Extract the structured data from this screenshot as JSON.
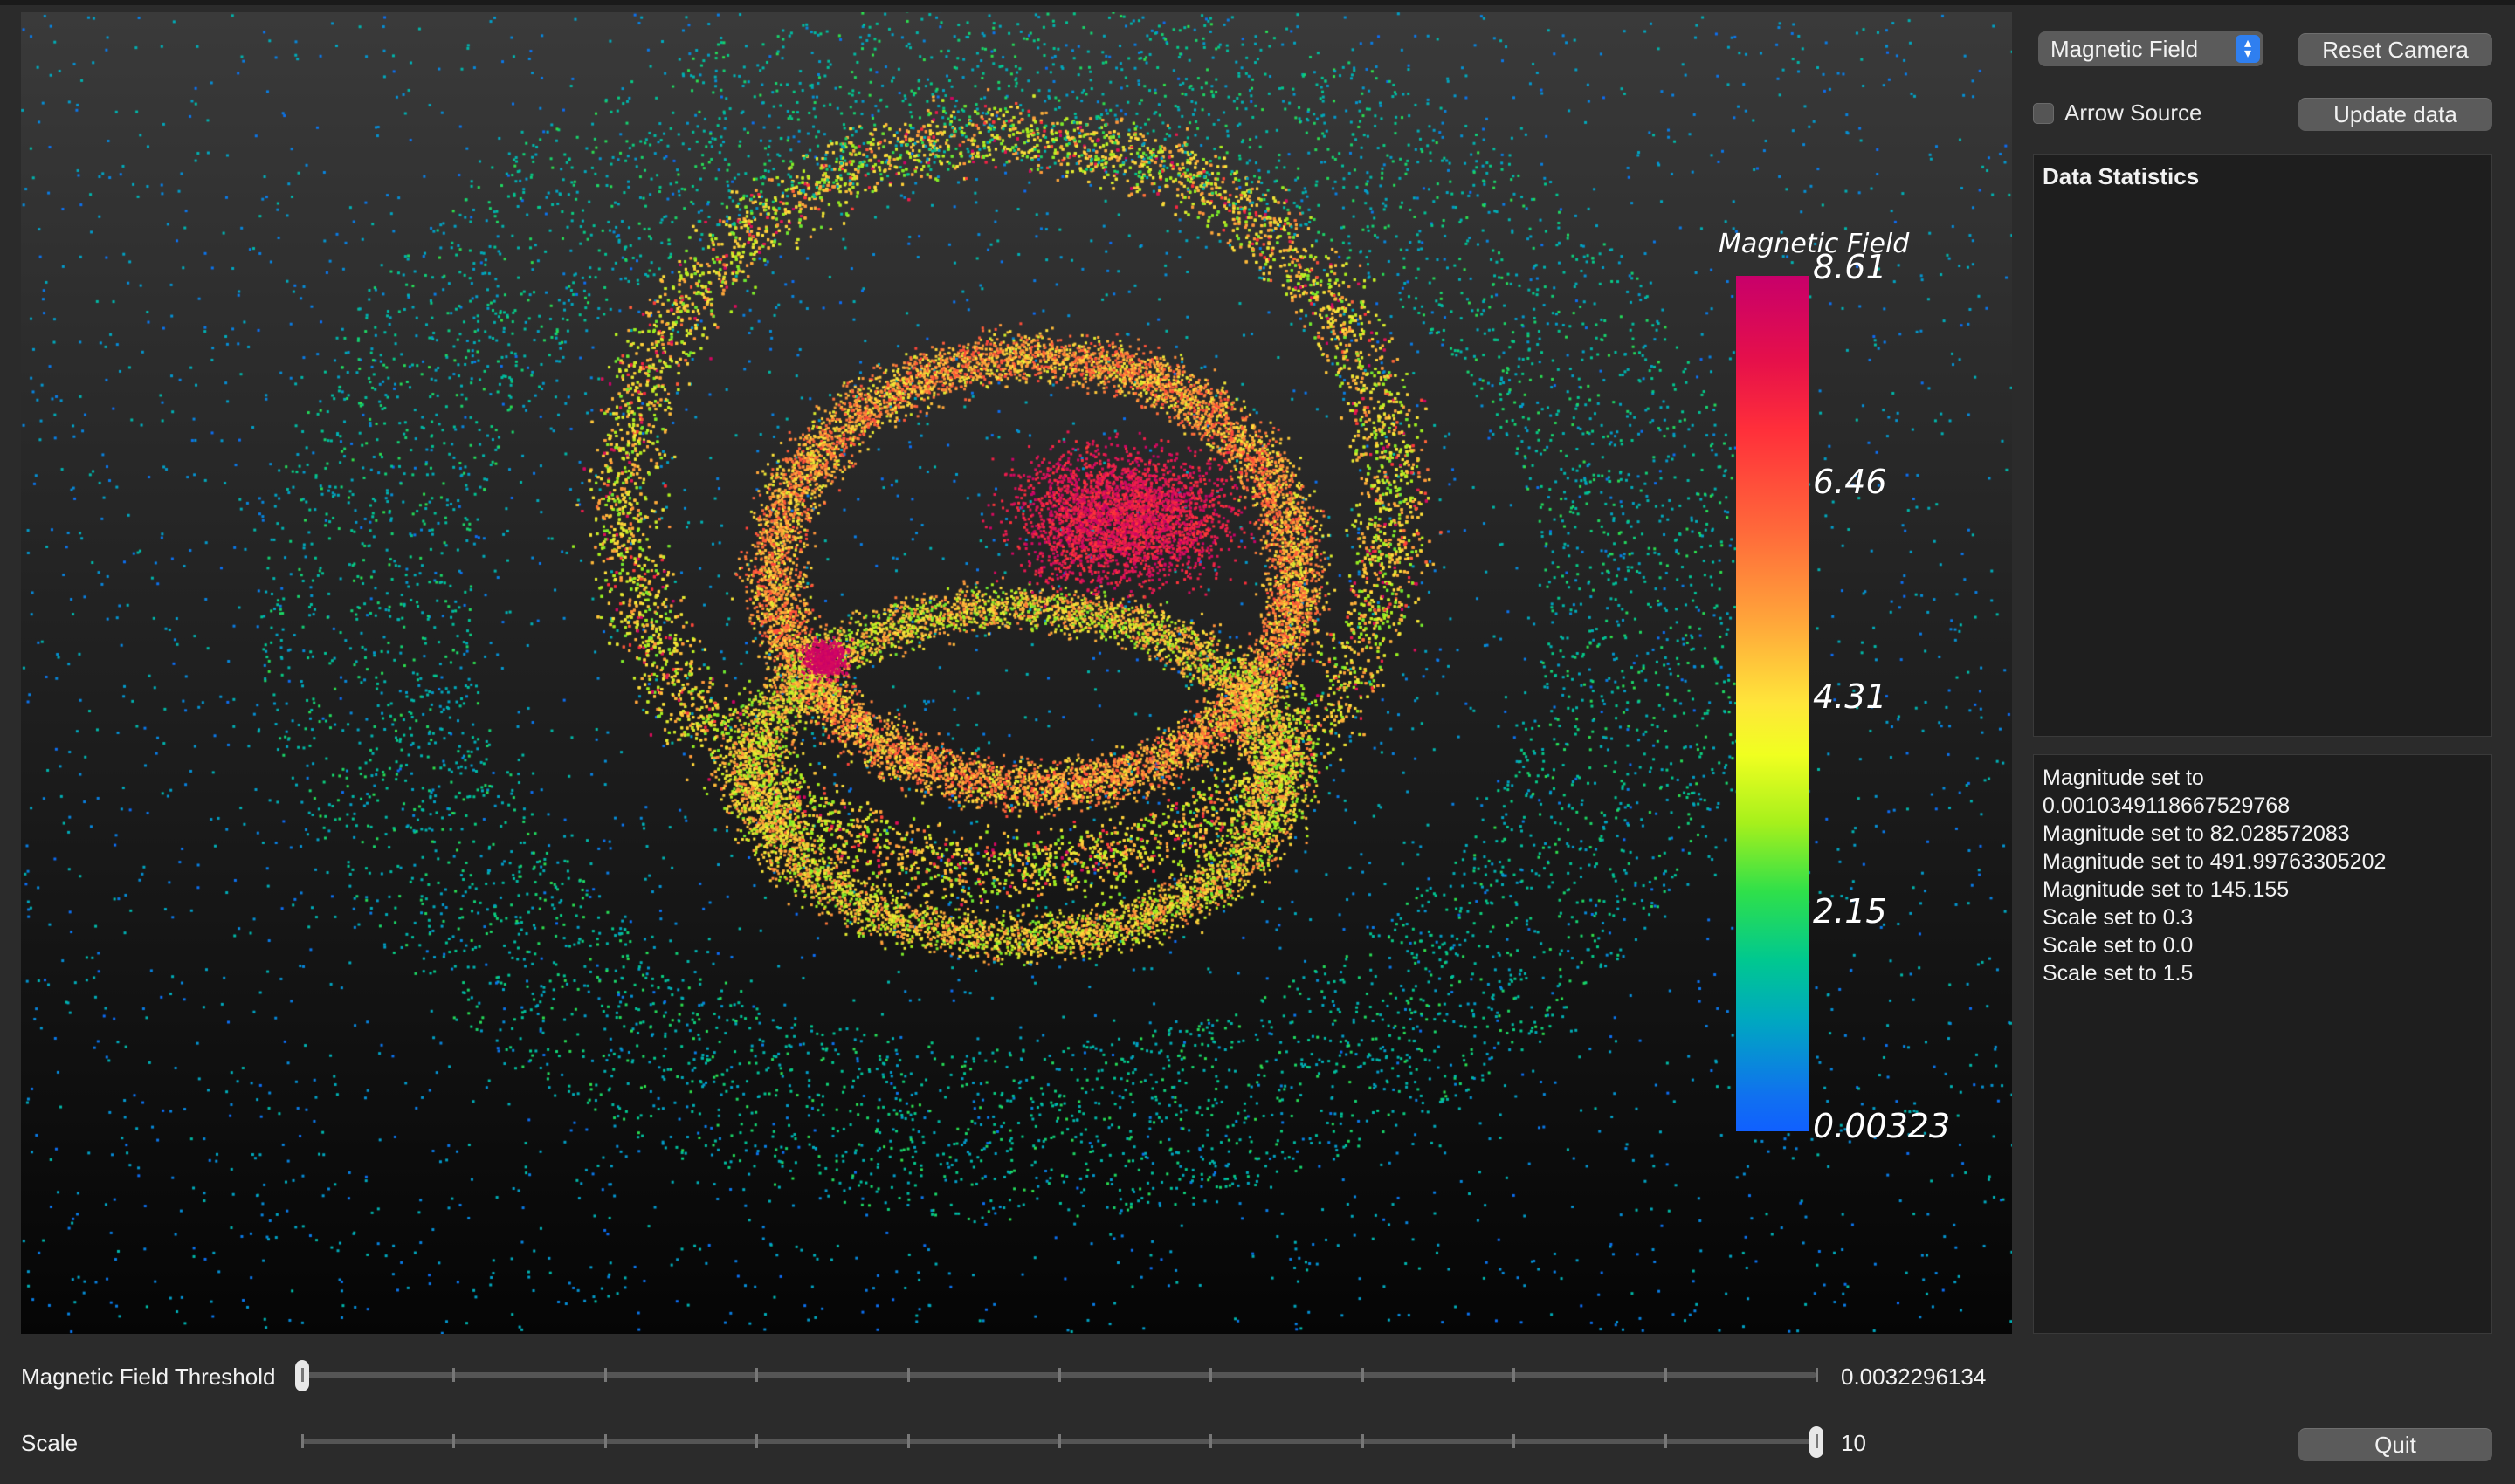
{
  "window": {
    "viewport": {
      "colorbar": {
        "title": "Magnetic Field",
        "ticks": [
          "8.61",
          "6.46",
          "4.31",
          "2.15",
          "0.00323"
        ]
      }
    }
  },
  "sidebar": {
    "field_select": {
      "selected": "Magnetic Field"
    },
    "reset_camera_label": "Reset Camera",
    "arrow_source": {
      "label": "Arrow Source",
      "checked": false
    },
    "update_data_label": "Update data",
    "stats_panel": {
      "title": "Data Statistics"
    },
    "log_panel": {
      "lines": [
        "Magnitude set to",
        "0.0010349118667529768",
        "Magnitude set to 82.028572083",
        "Magnitude set to 491.99763305202",
        "Magnitude set to 145.155",
        "Scale set to 0.3",
        "Scale set to 0.0",
        "Scale set to 1.5"
      ]
    },
    "quit_label": "Quit"
  },
  "controls": {
    "threshold": {
      "label": "Magnetic Field Threshold",
      "value_text": "0.0032296134",
      "position_fraction": 0.0
    },
    "scale": {
      "label": "Scale",
      "value_text": "10",
      "position_fraction": 1.0
    }
  },
  "colors": {
    "background": "#2b2b2b",
    "button": "#5b5b5b",
    "accent": "#2f7ff0"
  }
}
